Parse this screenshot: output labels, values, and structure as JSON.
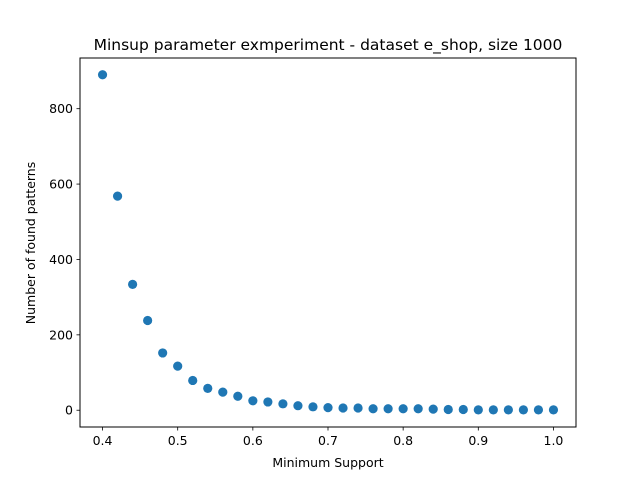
{
  "chart_data": {
    "type": "scatter",
    "title": "Minsup parameter exmperiment - dataset e_shop, size 1000",
    "xlabel": "Minimum Support",
    "ylabel": "Number of found patterns",
    "xlim": [
      0.37,
      1.03
    ],
    "ylim": [
      -44.5,
      934.5
    ],
    "x_ticks": [
      0.4,
      0.5,
      0.6,
      0.7,
      0.8,
      0.9,
      1.0
    ],
    "x_tick_labels": [
      "0.4",
      "0.5",
      "0.6",
      "0.7",
      "0.8",
      "0.9",
      "1.0"
    ],
    "y_ticks": [
      0,
      200,
      400,
      600,
      800
    ],
    "y_tick_labels": [
      "0",
      "200",
      "400",
      "600",
      "800"
    ],
    "grid": false,
    "marker_color": "#1f77b4",
    "series": [
      {
        "x": [
          0.4,
          0.42,
          0.44,
          0.46,
          0.48,
          0.5,
          0.52,
          0.54,
          0.56,
          0.58,
          0.6,
          0.62,
          0.64,
          0.66,
          0.68,
          0.7,
          0.72,
          0.74,
          0.76,
          0.78,
          0.8,
          0.82,
          0.84,
          0.86,
          0.88,
          0.9,
          0.92,
          0.94,
          0.96,
          0.98,
          1.0
        ],
        "y": [
          890,
          568,
          334,
          238,
          152,
          117,
          79,
          58,
          48,
          37,
          25,
          22,
          17,
          12,
          9,
          7,
          6,
          6,
          4,
          4,
          4,
          4,
          3,
          2,
          2,
          1,
          1,
          1,
          1,
          1,
          1
        ]
      }
    ]
  }
}
